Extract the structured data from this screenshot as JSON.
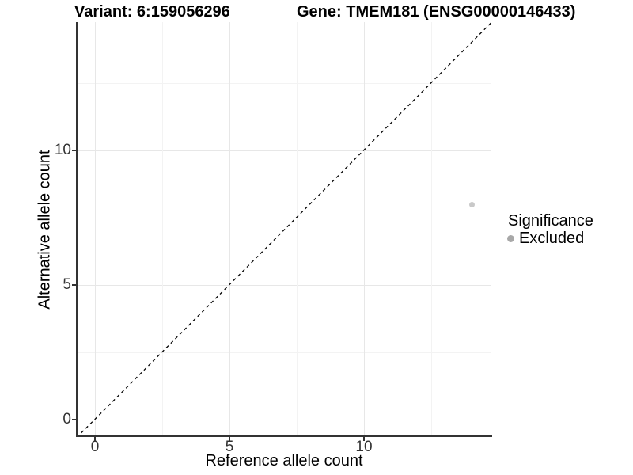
{
  "header": {
    "variant_title": "Variant: 6:159056296",
    "gene_title": "Gene: TMEM181 (ENSG00000146433)"
  },
  "axes": {
    "x": {
      "title": "Reference allele count",
      "tick_labels": [
        "0",
        "5",
        "10"
      ]
    },
    "y": {
      "title": "Alternative allele count",
      "tick_labels": [
        "0",
        "5",
        "10"
      ]
    }
  },
  "legend": {
    "title": "Significance",
    "items": [
      {
        "label": "Excluded",
        "swatch_color": "#a8a8a8"
      }
    ]
  },
  "chart_data": {
    "type": "scatter",
    "title": "Variant: 6:159056296 / Gene: TMEM181 (ENSG00000146433)",
    "xlabel": "Reference allele count",
    "ylabel": "Alternative allele count",
    "xlim": [
      -0.7,
      14.8
    ],
    "ylim": [
      -0.7,
      14.8
    ],
    "x_ticks": [
      0,
      5,
      10
    ],
    "y_ticks": [
      0,
      5,
      10
    ],
    "grid": "major at 0/5/10 and minor at 2.5/7.5/12.5, very light gray, white background",
    "legend_position": "right-center",
    "series": [
      {
        "name": "Excluded",
        "color": "#c9c9c9",
        "marker": "circle",
        "points": [
          {
            "x": 14,
            "y": 8
          }
        ]
      }
    ],
    "annotations": [
      {
        "type": "reference-line",
        "equation": "y = x",
        "style": "dashed",
        "color": "#000000"
      }
    ]
  },
  "colors": {
    "background": "#ffffff",
    "axis_line": "#333333",
    "grid_major": "#e7e7e7",
    "grid_minor": "#f3f3f3",
    "tick_label": "#333333",
    "point": "#c9c9c9",
    "legend_swatch": "#a8a8a8"
  }
}
